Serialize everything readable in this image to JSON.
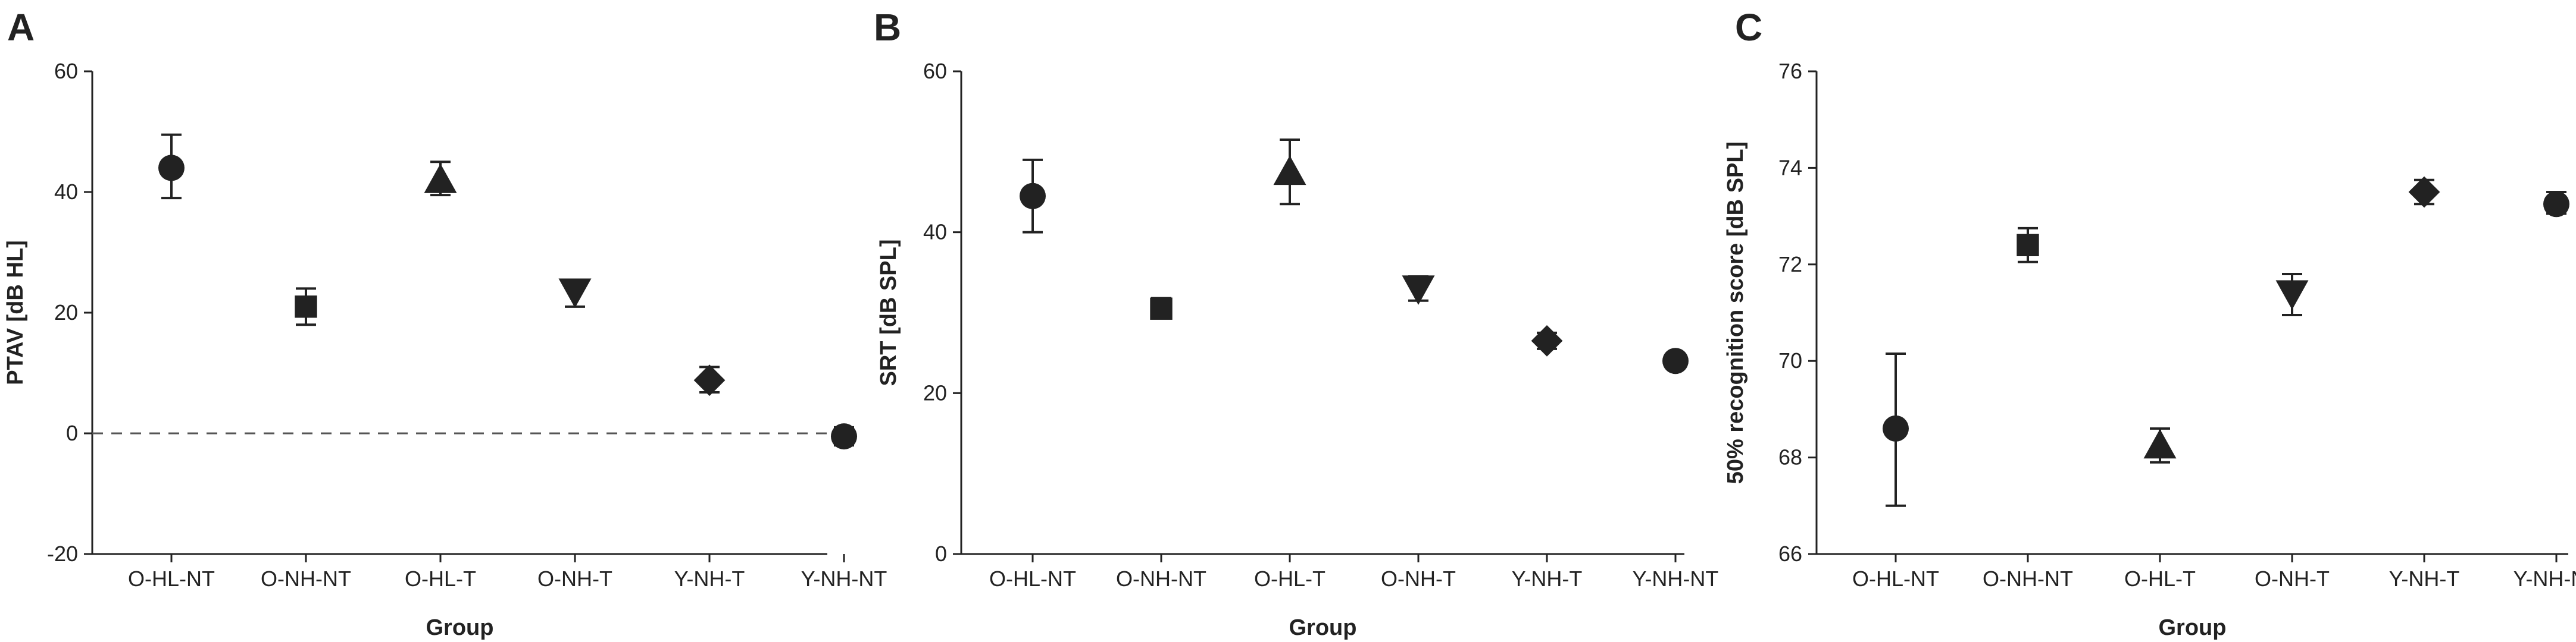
{
  "chart_data": [
    {
      "panel_label": "A",
      "type": "scatter",
      "categories": [
        "O-HL-NT",
        "O-NH-NT",
        "O-HL-T",
        "O-NH-T",
        "Y-NH-T",
        "Y-NH-NT"
      ],
      "values": [
        44,
        21,
        42,
        23.5,
        8.8,
        -0.5
      ],
      "error_low": [
        39,
        18,
        39.5,
        21,
        6.8,
        -2
      ],
      "error_high": [
        49.5,
        24,
        45,
        25.3,
        11,
        1
      ],
      "markers": [
        "circle",
        "square",
        "triangle-up",
        "triangle-down",
        "diamond",
        "circle"
      ],
      "xlabel": "Group",
      "ylabel": "PTAV [dB HL]",
      "ylim": [
        -20,
        60
      ],
      "yticks": [
        -20,
        0,
        20,
        40,
        60
      ],
      "reference_line": 0,
      "grid": false
    },
    {
      "panel_label": "B",
      "type": "scatter",
      "categories": [
        "O-HL-NT",
        "O-NH-NT",
        "O-HL-T",
        "O-NH-T",
        "Y-NH-T",
        "Y-NH-NT"
      ],
      "values": [
        44.5,
        30.5,
        47.5,
        33,
        26.5,
        24
      ],
      "error_low": [
        40,
        29.5,
        43.5,
        31.5,
        25.5,
        23.3
      ],
      "error_high": [
        49,
        31.8,
        51.5,
        34.5,
        27.5,
        24.8
      ],
      "markers": [
        "circle",
        "square",
        "triangle-up",
        "triangle-down",
        "diamond",
        "circle"
      ],
      "xlabel": "Group",
      "ylabel": "SRT [dB SPL]",
      "ylim": [
        0,
        60
      ],
      "yticks": [
        0,
        20,
        40,
        60
      ],
      "grid": false
    },
    {
      "panel_label": "C",
      "type": "scatter",
      "categories": [
        "O-HL-NT",
        "O-NH-NT",
        "O-HL-T",
        "O-NH-T",
        "Y-NH-T",
        "Y-NH-NT"
      ],
      "values": [
        68.6,
        72.4,
        68.25,
        71.4,
        73.5,
        73.25
      ],
      "error_low": [
        67,
        72.05,
        67.9,
        70.95,
        73.25,
        73.05
      ],
      "error_high": [
        70.15,
        72.75,
        68.6,
        71.8,
        73.75,
        73.5
      ],
      "markers": [
        "circle",
        "square",
        "triangle-up",
        "triangle-down",
        "diamond",
        "circle"
      ],
      "xlabel": "Group",
      "ylabel": "50% recognition score [dB SPL]",
      "ylim": [
        66,
        76
      ],
      "yticks": [
        66,
        68,
        70,
        72,
        74,
        76
      ],
      "grid": false
    }
  ]
}
